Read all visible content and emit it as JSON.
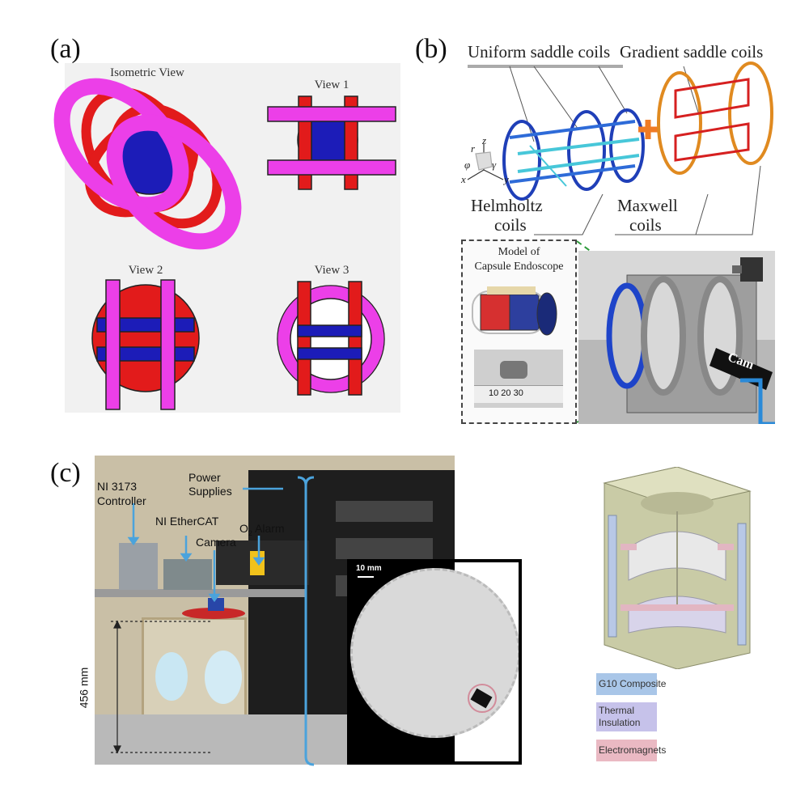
{
  "panels": {
    "a": {
      "label": "(a)",
      "views": [
        "Isometric View",
        "View 1",
        "View 2",
        "View 3"
      ]
    },
    "b": {
      "label": "(b)",
      "uniform": "Uniform saddle coils",
      "gradient": "Gradient saddle coils",
      "helmholtz_1": "Helmholtz",
      "helmholtz_2": "coils",
      "maxwell_1": "Maxwell",
      "maxwell_2": "coils",
      "capsule_1": "Model of",
      "capsule_2": "Capsule Endoscope",
      "cam": "Cam",
      "ruler": "10  20  30",
      "axes": {
        "z": "z",
        "y": "y",
        "x": "x",
        "r": "r",
        "phi": "φ",
        "gamma": "γ"
      }
    },
    "c": {
      "label": "(c)",
      "ni3173_1": "NI 3173",
      "ni3173_2": "Controller",
      "ethercat": "NI EtherCAT",
      "power_1": "Power",
      "power_2": "Supplies",
      "o2": "O",
      "o2_sub": "2",
      "o2_rest": " Alarm",
      "camera": "Camera",
      "height": "456 mm",
      "scale": "10 mm",
      "legend": [
        "G10 Composite",
        "Thermal Insulation",
        "Electromagnets"
      ]
    }
  },
  "colors": {
    "magenta": "#ec3fe8",
    "red": "#e21b1b",
    "blue": "#1c1cb8",
    "callout": "#4ba3dc",
    "orange": "#f07b25",
    "legend_g10": "#a9c6e8",
    "legend_thermal": "#c6c2ea",
    "legend_em": "#eab9c3"
  }
}
